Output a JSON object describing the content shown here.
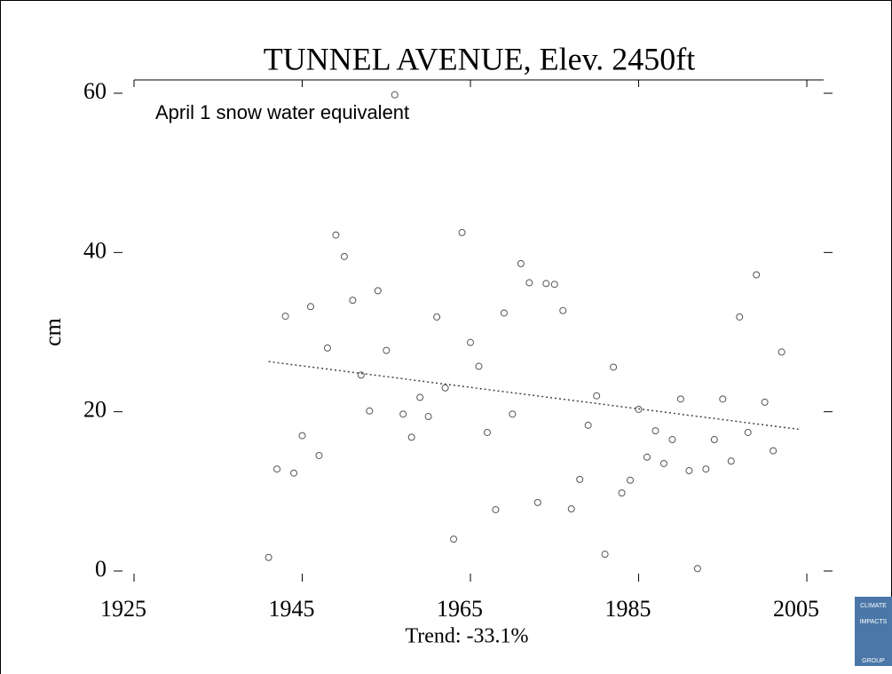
{
  "chart_data": {
    "type": "scatter",
    "title": "TUNNEL AVENUE, Elev. 2450ft",
    "annotation": "April 1 snow water equivalent",
    "ylabel": "cm",
    "xlabel": "Trend: -33.1%",
    "x": [
      1941,
      1942,
      1943,
      1944,
      1945,
      1946,
      1947,
      1948,
      1949,
      1950,
      1951,
      1952,
      1953,
      1954,
      1955,
      1956,
      1957,
      1958,
      1959,
      1960,
      1961,
      1962,
      1963,
      1964,
      1965,
      1966,
      1967,
      1968,
      1969,
      1970,
      1971,
      1972,
      1973,
      1974,
      1975,
      1976,
      1977,
      1978,
      1979,
      1980,
      1981,
      1982,
      1983,
      1984,
      1985,
      1986,
      1987,
      1988,
      1989,
      1990,
      1991,
      1992,
      1993,
      1994,
      1995,
      1996,
      1997,
      1998,
      1999,
      2000,
      2001,
      2002
    ],
    "values": [
      1.7,
      12.8,
      32,
      12.3,
      17,
      33.2,
      14.5,
      28,
      42.2,
      39.5,
      34,
      24.6,
      20.1,
      35.2,
      27.7,
      59.8,
      19.7,
      16.8,
      21.8,
      19.4,
      31.9,
      23,
      4,
      42.5,
      28.7,
      25.7,
      17.4,
      7.7,
      32.4,
      19.7,
      38.6,
      36.2,
      8.6,
      36.1,
      36,
      32.7,
      7.8,
      11.5,
      18.3,
      22,
      2.1,
      25.6,
      9.8,
      11.4,
      20.3,
      14.3,
      17.6,
      13.5,
      16.5,
      21.6,
      12.6,
      0.3,
      12.8,
      16.5,
      21.6,
      13.8,
      31.9,
      17.4,
      37.2,
      21.2,
      15.1,
      27.5
    ],
    "color": "#555555",
    "trend": {
      "x": [
        1941,
        2004
      ],
      "values": [
        26.3,
        17.8
      ],
      "color": "#444444"
    },
    "xlim": [
      1925,
      2007
    ],
    "xticks": [
      1925,
      1945,
      1965,
      1985,
      2005
    ],
    "ylim": [
      0,
      60
    ],
    "yticks": [
      0,
      20,
      40,
      60
    ]
  },
  "logo": [
    "CLIMATE",
    "IMPACTS",
    "GROUP"
  ]
}
